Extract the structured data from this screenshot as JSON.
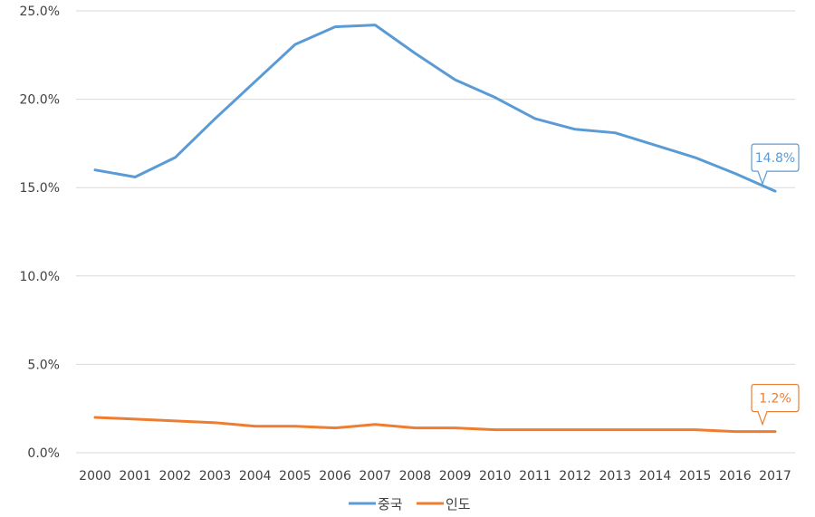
{
  "chart_data": {
    "type": "line",
    "title": "",
    "xlabel": "",
    "ylabel": "",
    "x": [
      "2000",
      "2001",
      "2002",
      "2003",
      "2004",
      "2005",
      "2006",
      "2007",
      "2008",
      "2009",
      "2010",
      "2011",
      "2012",
      "2013",
      "2014",
      "2015",
      "2016",
      "2017"
    ],
    "ylim": [
      0,
      25
    ],
    "yticks": [
      "0.0%",
      "5.0%",
      "10.0%",
      "15.0%",
      "20.0%",
      "25.0%"
    ],
    "grid": true,
    "legend_position": "bottom",
    "series": [
      {
        "name": "중국",
        "color": "#5b9bd5",
        "values": [
          16.0,
          15.6,
          16.7,
          18.9,
          21.0,
          23.1,
          24.1,
          24.2,
          22.6,
          21.1,
          20.1,
          18.9,
          18.3,
          18.1,
          17.4,
          16.7,
          15.8,
          14.8
        ],
        "end_label": "14.8%"
      },
      {
        "name": "인도",
        "color": "#ed7d31",
        "values": [
          2.0,
          1.9,
          1.8,
          1.7,
          1.5,
          1.5,
          1.4,
          1.6,
          1.4,
          1.4,
          1.3,
          1.3,
          1.3,
          1.3,
          1.3,
          1.3,
          1.2,
          1.2
        ],
        "end_label": "1.2%"
      }
    ]
  }
}
